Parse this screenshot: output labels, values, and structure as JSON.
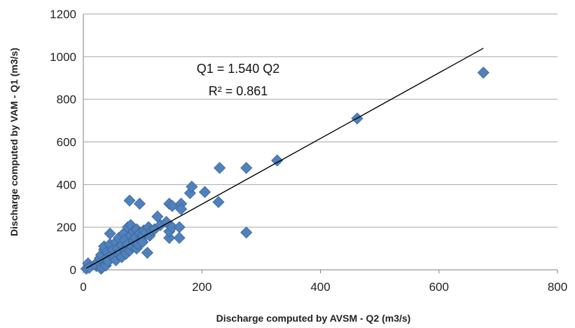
{
  "chart_data": {
    "type": "scatter",
    "xlabel": "Discharge computed by AVSM - Q2 (m3/s)",
    "ylabel": "Discharge computed by VAM - Q1 (m3/s)",
    "xlim": [
      0,
      800
    ],
    "ylim": [
      0,
      1200
    ],
    "x_ticks": [
      "0",
      "200",
      "400",
      "600",
      "800"
    ],
    "y_ticks": [
      "0",
      "200",
      "400",
      "600",
      "800",
      "1000",
      "1200"
    ],
    "grid": "horizontal",
    "legend": "none",
    "marker_color": "#4f81bd",
    "marker_edge_color": "#3c6496",
    "trendline": {
      "equation": "Q1 = 1.540 Q2",
      "r_squared": "R² = 0.861",
      "slope": 1.54,
      "x_range": [
        5,
        675
      ]
    },
    "series": [
      {
        "points": [
          [
            5,
            5
          ],
          [
            8,
            30
          ],
          [
            10,
            10
          ],
          [
            20,
            25
          ],
          [
            22,
            18
          ],
          [
            25,
            40
          ],
          [
            28,
            55
          ],
          [
            30,
            5
          ],
          [
            30,
            70
          ],
          [
            32,
            12
          ],
          [
            35,
            95
          ],
          [
            35,
            110
          ],
          [
            38,
            20
          ],
          [
            40,
            60
          ],
          [
            40,
            85
          ],
          [
            42,
            40
          ],
          [
            45,
            170
          ],
          [
            45,
            120
          ],
          [
            48,
            75
          ],
          [
            50,
            95
          ],
          [
            52,
            55
          ],
          [
            55,
            130
          ],
          [
            55,
            45
          ],
          [
            58,
            100
          ],
          [
            60,
            70
          ],
          [
            60,
            150
          ],
          [
            62,
            85
          ],
          [
            65,
            115
          ],
          [
            65,
            60
          ],
          [
            68,
            170
          ],
          [
            70,
            95
          ],
          [
            70,
            140
          ],
          [
            72,
            75
          ],
          [
            75,
            200
          ],
          [
            75,
            120
          ],
          [
            78,
            325
          ],
          [
            78,
            90
          ],
          [
            80,
            160
          ],
          [
            80,
            210
          ],
          [
            82,
            110
          ],
          [
            85,
            180
          ],
          [
            85,
            135
          ],
          [
            88,
            150
          ],
          [
            90,
            100
          ],
          [
            90,
            190
          ],
          [
            92,
            120
          ],
          [
            95,
            310
          ],
          [
            95,
            170
          ],
          [
            98,
            140
          ],
          [
            100,
            160
          ],
          [
            100,
            130
          ],
          [
            102,
            185
          ],
          [
            105,
            175
          ],
          [
            108,
            80
          ],
          [
            110,
            200
          ],
          [
            112,
            160
          ],
          [
            115,
            185
          ],
          [
            120,
            190
          ],
          [
            125,
            250
          ],
          [
            130,
            210
          ],
          [
            140,
            225
          ],
          [
            145,
            150
          ],
          [
            145,
            180
          ],
          [
            145,
            310
          ],
          [
            150,
            200
          ],
          [
            150,
            300
          ],
          [
            162,
            150
          ],
          [
            162,
            200
          ],
          [
            165,
            310
          ],
          [
            165,
            285
          ],
          [
            180,
            360
          ],
          [
            183,
            390
          ],
          [
            205,
            365
          ],
          [
            228,
            318
          ],
          [
            230,
            478
          ],
          [
            275,
            478
          ],
          [
            275,
            175
          ],
          [
            327,
            513
          ],
          [
            462,
            710
          ],
          [
            675,
            925
          ]
        ]
      }
    ]
  }
}
